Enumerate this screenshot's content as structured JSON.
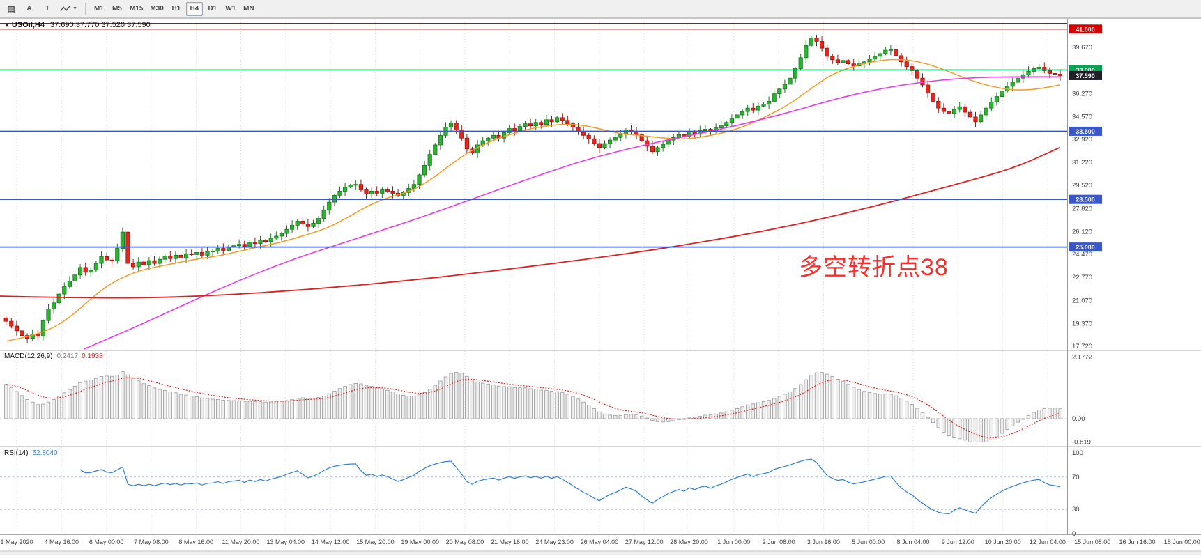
{
  "toolbar": {
    "buttons": [
      "A",
      "T"
    ],
    "timeframes": [
      "M1",
      "M5",
      "M15",
      "M30",
      "H1",
      "H4",
      "D1",
      "W1",
      "MN"
    ],
    "active_timeframe": "H4"
  },
  "chart": {
    "symbol_title": "USOil,H4",
    "ohlc_text": "37.690 37.770 37.520 37.590",
    "annotation_text": "多空转折点38",
    "annotation_color": "#ff2b2b"
  },
  "chart_data": {
    "type": "candlestick",
    "symbol": "USOil",
    "timeframe": "H4",
    "ohlc_display": {
      "open": "37.690",
      "high": "37.770",
      "low": "37.520",
      "close": "37.590"
    },
    "price_range": [
      17.72,
      41.45
    ],
    "first_open": 19.8,
    "closes": [
      19.55,
      19.2,
      18.85,
      18.5,
      18.3,
      18.6,
      18.45,
      19.6,
      20.45,
      20.9,
      21.55,
      22.1,
      22.5,
      22.95,
      23.5,
      23.15,
      23.3,
      23.8,
      24.3,
      24.05,
      24.0,
      24.9,
      26.1,
      23.8,
      23.55,
      23.9,
      23.7,
      24.0,
      23.8,
      24.1,
      24.35,
      24.15,
      24.4,
      24.2,
      24.5,
      24.45,
      24.6,
      24.4,
      24.65,
      24.7,
      24.9,
      24.75,
      25.0,
      25.1,
      25.2,
      25.05,
      25.35,
      25.25,
      25.5,
      25.4,
      25.65,
      25.8,
      26.0,
      26.3,
      26.6,
      26.9,
      26.7,
      26.5,
      26.75,
      27.1,
      27.7,
      28.3,
      28.8,
      29.1,
      29.4,
      29.55,
      29.6,
      29.2,
      28.9,
      29.1,
      28.95,
      29.2,
      29.1,
      28.95,
      28.8,
      29.0,
      29.3,
      29.6,
      30.3,
      31.0,
      31.8,
      32.5,
      33.2,
      33.8,
      34.1,
      33.6,
      33.0,
      32.2,
      31.9,
      32.5,
      32.8,
      33.0,
      33.2,
      33.0,
      33.4,
      33.7,
      33.55,
      33.85,
      34.05,
      33.9,
      34.15,
      34.0,
      34.35,
      34.2,
      34.5,
      34.3,
      34.05,
      33.8,
      33.5,
      33.2,
      32.95,
      32.6,
      32.3,
      32.6,
      32.85,
      33.05,
      33.3,
      33.6,
      33.45,
      33.25,
      32.8,
      32.4,
      32.0,
      32.3,
      32.55,
      32.85,
      33.05,
      33.25,
      33.1,
      33.45,
      33.3,
      33.55,
      33.65,
      33.5,
      33.75,
      33.9,
      34.15,
      34.45,
      34.7,
      34.95,
      35.2,
      35.05,
      35.35,
      35.5,
      35.7,
      36.25,
      36.6,
      36.95,
      37.4,
      38.1,
      38.9,
      39.8,
      40.35,
      40.1,
      39.6,
      39.0,
      38.75,
      38.55,
      38.7,
      38.45,
      38.3,
      38.45,
      38.6,
      38.8,
      39.0,
      39.2,
      39.45,
      39.5,
      39.05,
      38.6,
      38.25,
      37.95,
      37.4,
      36.9,
      36.3,
      35.7,
      35.2,
      34.95,
      34.8,
      35.1,
      35.3,
      34.9,
      34.55,
      34.2,
      34.7,
      35.2,
      35.65,
      36.05,
      36.45,
      36.8,
      37.1,
      37.4,
      37.65,
      37.9,
      38.1,
      38.2,
      37.95,
      37.75,
      37.69,
      37.59
    ],
    "colors": {
      "bull": "#30b135",
      "bull_edge": "#157a1e",
      "bear": "#e0281e",
      "bear_edge": "#9e160f",
      "grid": "#dadada",
      "axis_text": "#3a3a3a",
      "time_text": "#3f3f3f",
      "bid_badge": "#20202a",
      "macd_bar_fill": "#efefef",
      "macd_bar_edge": "#9a9a9a",
      "macd_signal": "#e02020",
      "rsi_line": "#2f7ed8",
      "rsi_level": "#b6c2e1"
    },
    "price_axis": {
      "labels": [
        "39.670",
        "36.270",
        "34.570",
        "32.920",
        "31.220",
        "29.520",
        "27.820",
        "26.120",
        "24.470",
        "22.770",
        "21.070",
        "19.370",
        "17.720"
      ],
      "prices": [
        39.67,
        36.27,
        34.57,
        32.92,
        31.22,
        29.52,
        27.82,
        26.12,
        24.47,
        22.77,
        21.07,
        19.37,
        17.72
      ]
    },
    "hlines": [
      {
        "price": 41.42,
        "color": "#d40000",
        "width": 1.2
      },
      {
        "price": 41.0,
        "color": "#d40000",
        "width": 1.2,
        "label": "41.000"
      },
      {
        "price": 38.0,
        "color": "#00a651",
        "width": 1.7,
        "label": "38.000"
      },
      {
        "price": 33.5,
        "color": "#3a57c8",
        "width": 1.7,
        "label": "33.500"
      },
      {
        "price": 28.5,
        "color": "#3a57c8",
        "width": 1.7,
        "label": "28.500"
      },
      {
        "price": 25.0,
        "color": "#3a57c8",
        "width": 1.7,
        "label": "25.000"
      }
    ],
    "bid": {
      "price": 37.59,
      "label": "37.590"
    },
    "ma_lines": [
      {
        "name": "fast-ma-orange",
        "color": "#f59a23",
        "width": 1.5,
        "points": [
          [
            10,
            18.1
          ],
          [
            60,
            18.6
          ],
          [
            100,
            19.8
          ],
          [
            130,
            21.2
          ],
          [
            160,
            22.4
          ],
          [
            200,
            23.3
          ],
          [
            240,
            23.7
          ],
          [
            280,
            24.1
          ],
          [
            320,
            24.4
          ],
          [
            360,
            24.9
          ],
          [
            400,
            25.3
          ],
          [
            440,
            25.9
          ],
          [
            470,
            26.4
          ],
          [
            500,
            27.2
          ],
          [
            530,
            28.1
          ],
          [
            560,
            28.7
          ],
          [
            590,
            29.1
          ],
          [
            620,
            30.0
          ],
          [
            650,
            31.2
          ],
          [
            680,
            32.2
          ],
          [
            710,
            32.9
          ],
          [
            740,
            33.4
          ],
          [
            770,
            33.8
          ],
          [
            800,
            34.0
          ],
          [
            830,
            34.0
          ],
          [
            860,
            33.7
          ],
          [
            890,
            33.3
          ],
          [
            920,
            33.2
          ],
          [
            950,
            33.0
          ],
          [
            980,
            32.9
          ],
          [
            1010,
            33.1
          ],
          [
            1040,
            33.4
          ],
          [
            1070,
            33.9
          ],
          [
            1100,
            34.6
          ],
          [
            1130,
            35.4
          ],
          [
            1160,
            36.5
          ],
          [
            1190,
            37.6
          ],
          [
            1220,
            38.2
          ],
          [
            1250,
            38.6
          ],
          [
            1280,
            38.8
          ],
          [
            1310,
            38.7
          ],
          [
            1340,
            38.3
          ],
          [
            1370,
            37.7
          ],
          [
            1400,
            37.1
          ],
          [
            1430,
            36.7
          ],
          [
            1460,
            36.5
          ],
          [
            1490,
            36.6
          ],
          [
            1520,
            36.9
          ]
        ]
      },
      {
        "name": "mid-ma-magenta",
        "color": "#e93ce9",
        "width": 1.6,
        "points": [
          [
            120,
            17.5
          ],
          [
            180,
            18.8
          ],
          [
            240,
            20.2
          ],
          [
            300,
            21.6
          ],
          [
            360,
            22.9
          ],
          [
            420,
            24.1
          ],
          [
            480,
            25.1
          ],
          [
            540,
            26.1
          ],
          [
            600,
            27.1
          ],
          [
            660,
            28.2
          ],
          [
            720,
            29.3
          ],
          [
            780,
            30.4
          ],
          [
            840,
            31.4
          ],
          [
            900,
            32.2
          ],
          [
            960,
            32.9
          ],
          [
            1020,
            33.5
          ],
          [
            1080,
            34.2
          ],
          [
            1140,
            35.0
          ],
          [
            1200,
            35.9
          ],
          [
            1260,
            36.6
          ],
          [
            1320,
            37.1
          ],
          [
            1380,
            37.4
          ],
          [
            1440,
            37.5
          ],
          [
            1520,
            37.5
          ]
        ]
      },
      {
        "name": "slow-ma-red",
        "color": "#e02020",
        "width": 1.8,
        "points": [
          [
            0,
            21.4
          ],
          [
            150,
            21.2
          ],
          [
            300,
            21.4
          ],
          [
            450,
            21.9
          ],
          [
            600,
            22.6
          ],
          [
            750,
            23.5
          ],
          [
            900,
            24.5
          ],
          [
            1000,
            25.3
          ],
          [
            1100,
            26.2
          ],
          [
            1200,
            27.3
          ],
          [
            1300,
            28.6
          ],
          [
            1400,
            30.0
          ],
          [
            1460,
            30.9
          ],
          [
            1520,
            32.3
          ]
        ]
      }
    ],
    "macd": {
      "title": "MACD(12,26,9)",
      "value_main": "0.2417",
      "value_signal": "0.1938",
      "scale": [
        {
          "v": 2.1772,
          "t": "2.1772"
        },
        {
          "v": 0,
          "t": "0.00"
        },
        {
          "v": -0.819,
          "t": "-0.819"
        }
      ]
    },
    "rsi": {
      "title": "RSI(14)",
      "value": "52.8040",
      "scale": [
        {
          "v": 100,
          "t": "100"
        },
        {
          "v": 70,
          "t": "70"
        },
        {
          "v": 30,
          "t": "30"
        },
        {
          "v": 0,
          "t": "0"
        }
      ],
      "levels": [
        70,
        30
      ]
    },
    "time_labels": [
      "1 May 2020",
      "4 May 16:00",
      "6 May 00:00",
      "7 May 08:00",
      "8 May 16:00",
      "11 May 20:00",
      "13 May 04:00",
      "14 May 12:00",
      "15 May 20:00",
      "19 May 00:00",
      "20 May 08:00",
      "21 May 16:00",
      "24 May 23:00",
      "26 May 04:00",
      "27 May 12:00",
      "28 May 20:00",
      "1 Jun 00:00",
      "2 Jun 08:00",
      "3 Jun 16:00",
      "5 Jun 00:00",
      "8 Jun 04:00",
      "9 Jun 12:00",
      "10 Jun 20:00",
      "12 Jun 04:00",
      "15 Jun 08:00",
      "16 Jun 16:00",
      "18 Jun 00:00"
    ]
  }
}
